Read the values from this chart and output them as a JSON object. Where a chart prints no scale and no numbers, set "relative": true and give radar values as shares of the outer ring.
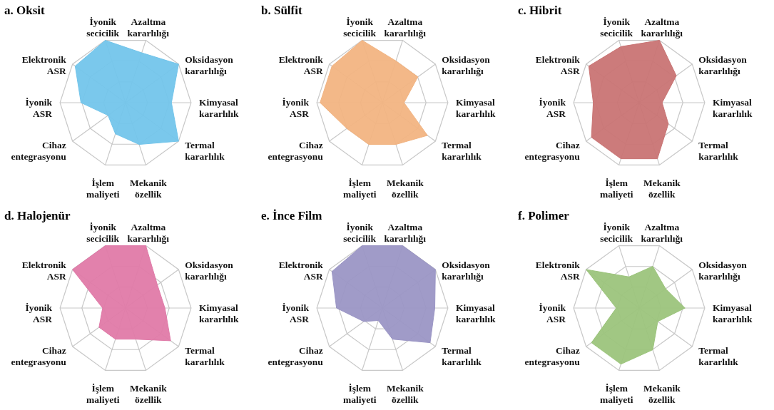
{
  "chart_data": [
    {
      "type": "radar",
      "title": "a. Oksit",
      "relative": true,
      "grid": true,
      "categories": [
        "Azaltma kararlılığı",
        "Oksidasyon kararlılığı",
        "Kimyasal kararlılık",
        "Termal kararlılık",
        "Mekanik özellik",
        "İşlem maliyeti",
        "Cihaz entegrasyonu",
        "İyonik ASR",
        "Elektronik ASR",
        "İyonik secicilik"
      ],
      "series": [
        {
          "color": "#73c5eb",
          "values": [
            0.8,
            1.0,
            0.7,
            1.0,
            0.67,
            0.5,
            0.33,
            0.68,
            0.95,
            1.0
          ]
        }
      ]
    },
    {
      "type": "radar",
      "title": "b. Sülfit",
      "relative": true,
      "grid": true,
      "categories": [
        "Azaltma kararlılığı",
        "Oksidasyon kararlılığı",
        "Kimyasal kararlılık",
        "Termal kararlılık",
        "Mekanik özellik",
        "İşlem maliyeti",
        "Cihaz entegrasyonu",
        "İyonik ASR",
        "Elektronik ASR",
        "İyonik secicilik"
      ],
      "series": [
        {
          "color": "#f2b482",
          "values": [
            0.67,
            0.67,
            0.33,
            0.85,
            0.67,
            0.67,
            0.67,
            0.95,
            0.95,
            1.0
          ]
        }
      ]
    },
    {
      "type": "radar",
      "title": "c. Hibrit",
      "relative": true,
      "grid": true,
      "categories": [
        "Azaltma kararlılığı",
        "Oksidasyon kararlılığı",
        "Kimyasal kararlılık",
        "Termal kararlılık",
        "Mekanik özellik",
        "İşlem maliyeti",
        "Cihaz entegrasyonu",
        "İyonik ASR",
        "Elektronik ASR",
        "İyonik secicilik"
      ],
      "series": [
        {
          "color": "#c97474",
          "values": [
            1.0,
            0.7,
            0.35,
            0.55,
            0.9,
            0.9,
            0.9,
            0.7,
            0.95,
            0.9
          ]
        }
      ]
    },
    {
      "type": "radar",
      "title": "d. Halojenür",
      "relative": true,
      "grid": true,
      "categories": [
        "Azaltma kararlılığı",
        "Oksidasyon kararlılığı",
        "Kimyasal kararlılık",
        "Termal kararlılık",
        "Mekanik özellik",
        "İşlem maliyeti",
        "Cihaz entegrasyonu",
        "İyonik ASR",
        "Elektronik ASR",
        "İyonik secicilik"
      ],
      "series": [
        {
          "color": "#e07aa8",
          "values": [
            1.0,
            0.6,
            0.6,
            0.85,
            0.5,
            0.5,
            0.5,
            0.35,
            1.0,
            1.0
          ]
        }
      ]
    },
    {
      "type": "radar",
      "title": "e. İnce Film",
      "relative": true,
      "grid": true,
      "categories": [
        "Azaltma kararlılığı",
        "Oksidasyon kararlılığı",
        "Kimyasal kararlılık",
        "Termal kararlılık",
        "Mekanik özellik",
        "İşlem maliyeti",
        "Cihaz entegrasyonu",
        "İyonik ASR",
        "Elektronik ASR",
        "İyonik secicilik"
      ],
      "series": [
        {
          "color": "#9b96c5",
          "values": [
            1.0,
            1.0,
            0.8,
            0.9,
            0.5,
            0.2,
            0.35,
            0.7,
            0.95,
            1.0
          ]
        }
      ]
    },
    {
      "type": "radar",
      "title": "f. Polimer",
      "relative": true,
      "grid": true,
      "categories": [
        "Azaltma kararlılığı",
        "Oksidasyon kararlılığı",
        "Kimyasal kararlılık",
        "Termal kararlılık",
        "Mekanik özellik",
        "İşlem maliyeti",
        "Cihaz entegrasyonu",
        "İyonik ASR",
        "Elektronik ASR",
        "İyonik secicilik"
      ],
      "series": [
        {
          "color": "#9cc47c",
          "values": [
            0.67,
            0.5,
            0.7,
            0.35,
            0.67,
            0.9,
            0.9,
            0.35,
            1.0,
            0.5
          ]
        }
      ]
    }
  ]
}
